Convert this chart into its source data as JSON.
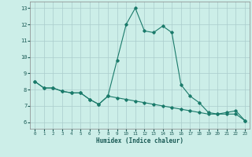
{
  "xlabel": "Humidex (Indice chaleur)",
  "x": [
    0,
    1,
    2,
    3,
    4,
    5,
    6,
    7,
    8,
    9,
    10,
    11,
    12,
    13,
    14,
    15,
    16,
    17,
    18,
    19,
    20,
    21,
    22,
    23
  ],
  "line1": [
    8.5,
    8.1,
    8.1,
    7.9,
    7.8,
    7.8,
    7.4,
    7.1,
    7.6,
    9.8,
    12.0,
    13.0,
    11.6,
    11.5,
    11.9,
    11.5,
    8.3,
    7.6,
    7.2,
    6.6,
    6.5,
    6.6,
    6.7,
    6.1
  ],
  "line2": [
    8.5,
    8.1,
    8.1,
    7.9,
    7.8,
    7.8,
    7.4,
    7.1,
    7.6,
    7.5,
    7.4,
    7.3,
    7.2,
    7.1,
    7.0,
    6.9,
    6.8,
    6.7,
    6.6,
    6.5,
    6.5,
    6.5,
    6.5,
    6.1
  ],
  "line_color": "#1a7a6a",
  "bg_color": "#cceee8",
  "grid_color": "#aacccc",
  "ylim": [
    5.6,
    13.4
  ],
  "xlim": [
    -0.5,
    23.5
  ],
  "yticks": [
    6,
    7,
    8,
    9,
    10,
    11,
    12,
    13
  ],
  "xticks": [
    0,
    1,
    2,
    3,
    4,
    5,
    6,
    7,
    8,
    9,
    10,
    11,
    12,
    13,
    14,
    15,
    16,
    17,
    18,
    19,
    20,
    21,
    22,
    23
  ]
}
